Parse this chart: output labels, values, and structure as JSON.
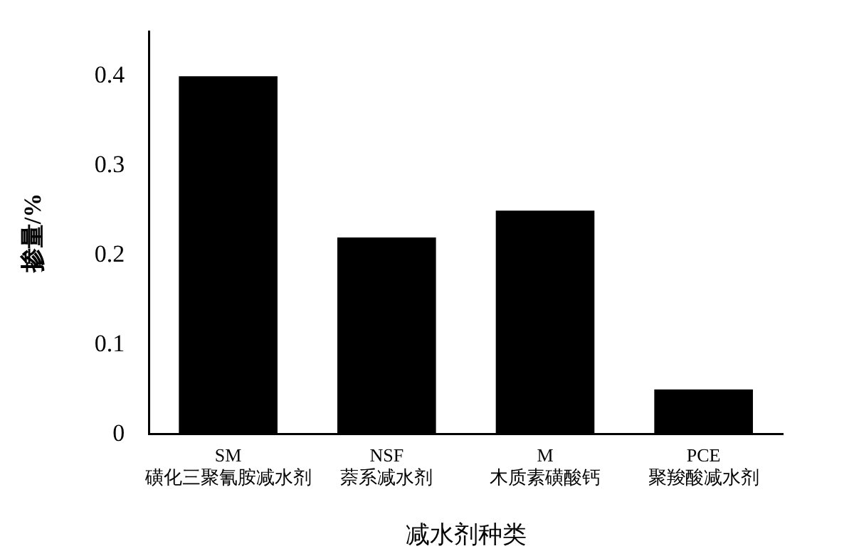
{
  "chart_data": {
    "type": "bar",
    "categories": [
      "SM\n磺化三聚氰胺减水剂",
      "NSF\n萘系减水剂",
      "M\n木质素磺酸钙",
      "PCE\n聚羧酸减水剂"
    ],
    "values": [
      0.4,
      0.22,
      0.25,
      0.05
    ],
    "color": "#000000",
    "ylim": [
      0,
      0.45
    ],
    "yticks": [
      0,
      0.1,
      0.2,
      0.3,
      0.4
    ],
    "xlabel": "减水剂种类",
    "ylabel": "掺量/%",
    "grid": false,
    "legend": false
  }
}
